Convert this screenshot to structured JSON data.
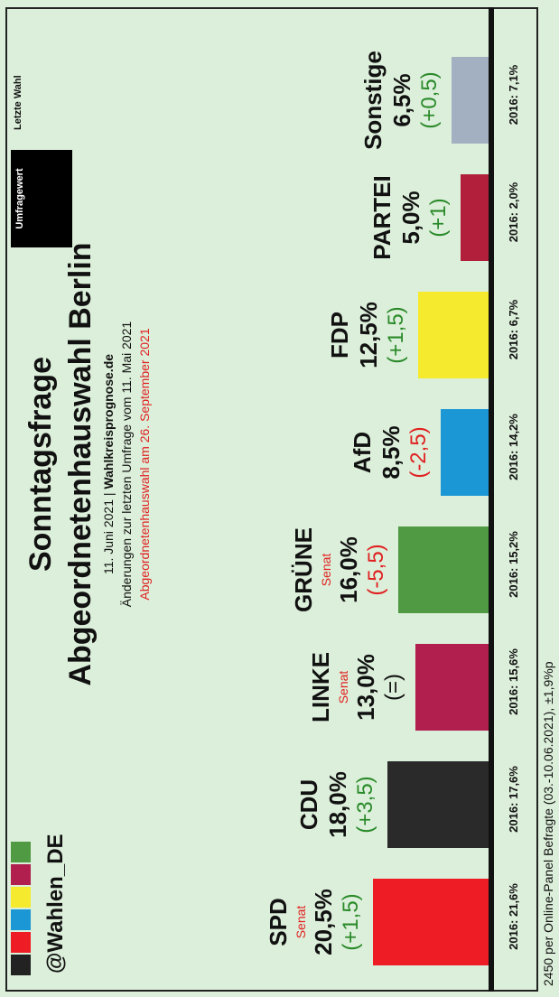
{
  "header": {
    "brand": "@Wahlen_DE",
    "title_line1": "Sonntagsfrage",
    "title_line2": "Abgeordnetenhauswahl Berlin",
    "date_line_pre": "11. Juni 2021 | ",
    "date_line_src": "Wahlkreisprognose.de",
    "changes_line": "Änderungen zur letzten Umfrage vom 11. Mai 2021",
    "election_line": "Abgeordnetenhauswahl am 26. September 2021"
  },
  "legend": {
    "current": "Umfragewert",
    "last": "Letzte Wahl"
  },
  "footer": "2450 per Online-Panel Befragte (03.-10.06.2021), ±1,9%p",
  "colors": {
    "SPD": "#ee1c24",
    "CDU": "#2a2a2a",
    "LINKE": "#b11f4e",
    "GRÜNE": "#4f9a42",
    "AfD": "#1b97d5",
    "FDP": "#f5ea2d",
    "PARTEI": "#b11f3a",
    "Sonstige": "#a3b0c2",
    "positive": "#2a8a2a",
    "negative": "#e02020"
  },
  "chart_data": {
    "type": "bar",
    "categories": [
      "SPD",
      "CDU",
      "LINKE",
      "GRÜNE",
      "AfD",
      "FDP",
      "PARTEI",
      "Sonstige"
    ],
    "values": [
      20.5,
      18.0,
      13.0,
      16.0,
      8.5,
      12.5,
      5.0,
      6.5
    ],
    "value_labels": [
      "20,5%",
      "18,0%",
      "13,0%",
      "16,0%",
      "8,5%",
      "12,5%",
      "5,0%",
      "6,5%"
    ],
    "changes": [
      "(+1,5)",
      "(+3,5)",
      "(=)",
      "(-5,5)",
      "(-2,5)",
      "(+1,5)",
      "(+1)",
      "(+0,5)"
    ],
    "change_sign": [
      "pos",
      "pos",
      "neutral",
      "neg",
      "neg",
      "pos",
      "pos",
      "pos"
    ],
    "senat": [
      "Senat",
      "",
      "Senat",
      "Senat",
      "",
      "",
      "",
      ""
    ],
    "last_election": [
      "2016: 21,6%",
      "2016: 17,6%",
      "2016: 15,6%",
      "2016: 15,2%",
      "2016: 14,2%",
      "2016: 6,7%",
      "2016: 2,0%",
      "2016: 7,1%"
    ]
  }
}
